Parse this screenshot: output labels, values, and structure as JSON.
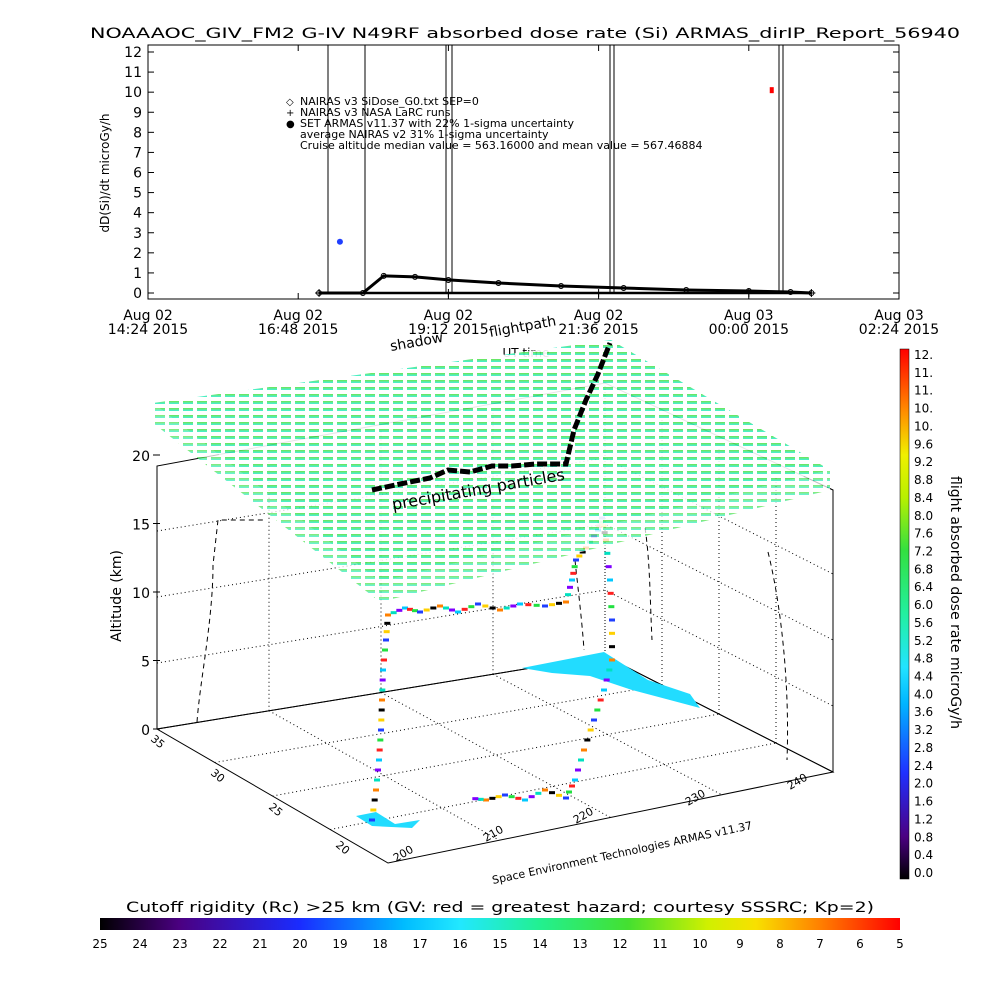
{
  "title": "NOAAAOC_GIV_FM2 G-IV   N49RF  absorbed dose rate (Si) ARMAS_dirIP_Report_56940",
  "top_chart": {
    "ylabel": "dD(Si)/dt microGy/h",
    "xlabel": "UT time",
    "y_ticks": [
      "0",
      "1",
      "2",
      "3",
      "4",
      "5",
      "6",
      "7",
      "8",
      "9",
      "10",
      "11",
      "12"
    ],
    "x_ticks": [
      {
        "date": "Aug 02",
        "time": "14:24 2015"
      },
      {
        "date": "Aug 02",
        "time": "16:48 2015"
      },
      {
        "date": "Aug 02",
        "time": "19:12 2015"
      },
      {
        "date": "Aug 02",
        "time": "21:36 2015"
      },
      {
        "date": "Aug 03",
        "time": "00:00 2015"
      },
      {
        "date": "Aug 03",
        "time": "02:24 2015"
      }
    ],
    "legend": [
      {
        "symbol": "◇",
        "text": "NAIRAS v3 SiDose_G0.txt SEP=0"
      },
      {
        "symbol": "+",
        "text": "NAIRAS v3 NASA LaRC runs"
      },
      {
        "symbol": "●",
        "text": "SET ARMAS v11.37 with 22% 1-sigma uncertainty"
      },
      {
        "symbol": "",
        "text": "average NAIRAS v2 31% 1-sigma uncertainty"
      },
      {
        "symbol": "",
        "text": "Cruise altitude median value = 563.16000 and mean value = 567.46884"
      }
    ]
  },
  "scene": {
    "label_shadow": "shadow",
    "label_flightpath": "flightpath",
    "label_precip": "precipitating particles",
    "z_label": "Altitude (km)",
    "z_ticks": [
      "0",
      "5",
      "10",
      "15",
      "20"
    ],
    "lat_ticks": [
      "20",
      "25",
      "30",
      "35"
    ],
    "lon_ticks": [
      "200",
      "210",
      "220",
      "230",
      "240"
    ],
    "credit": "Space Environment Technologies ARMAS v11.37"
  },
  "colorbar_right": {
    "label": "flight absorbed dose rate microGy/h",
    "ticks": [
      "12.",
      "11.",
      "11.",
      "10.",
      "10.",
      "9.6",
      "9.2",
      "8.8",
      "8.4",
      "8.0",
      "7.6",
      "7.2",
      "6.8",
      "6.4",
      "6.0",
      "5.6",
      "5.2",
      "4.8",
      "4.4",
      "4.0",
      "3.6",
      "3.2",
      "2.8",
      "2.4",
      "2.0",
      "1.6",
      "1.2",
      "0.8",
      "0.4",
      "0.0"
    ]
  },
  "colorbar_bottom": {
    "label": "Cutoff rigidity (Rc) >25 km (GV: red = greatest hazard; courtesy SSSRC; Kp=2)",
    "ticks": [
      "25",
      "24",
      "23",
      "22",
      "21",
      "20",
      "19",
      "18",
      "17",
      "16",
      "15",
      "14",
      "13",
      "12",
      "11",
      "10",
      "9",
      "8",
      "7",
      "6",
      "5"
    ]
  },
  "colors": {
    "armas_point": "#1f3fff",
    "red_point": "#ff0000",
    "cyan_patch": "#22dcff",
    "sheet_top": "#5fe23a",
    "sheet_bottom": "#2ef0d0"
  },
  "chart_data": [
    {
      "type": "line",
      "title": "NOAAAOC_GIV_FM2 G-IV   N49RF  absorbed dose rate (Si) ARMAS_dirIP_Report_56940",
      "xlabel": "UT time",
      "ylabel": "dD(Si)/dt microGy/h",
      "ylim": [
        0,
        12
      ],
      "xlim": [
        "2015-08-02 14:24",
        "2015-08-03 02:24"
      ],
      "grid": false,
      "legend_position": "top-left",
      "series": [
        {
          "name": "NAIRAS v3 SiDose_G0.txt SEP=0",
          "x": [
            "2015-08-02 17:08",
            "2015-08-02 17:50",
            "2015-08-02 18:10",
            "2015-08-02 18:40",
            "2015-08-02 19:12",
            "2015-08-02 20:00",
            "2015-08-02 21:00",
            "2015-08-02 22:00",
            "2015-08-02 23:00",
            "2015-08-03 00:00",
            "2015-08-03 00:40",
            "2015-08-03 01:00"
          ],
          "y": [
            0.0,
            0.0,
            0.85,
            0.8,
            0.65,
            0.5,
            0.35,
            0.25,
            0.15,
            0.1,
            0.05,
            0.0
          ]
        },
        {
          "name": "NAIRAS v3 NASA LaRC runs",
          "x": [
            "2015-08-02 17:08",
            "2015-08-02 19:12",
            "2015-08-02 21:36",
            "2015-08-03 00:00",
            "2015-08-03 01:00"
          ],
          "y": [
            0.0,
            0.0,
            0.0,
            0.0,
            0.0
          ]
        },
        {
          "name": "SET ARMAS v11.37 with 22% 1-sigma uncertainty",
          "x": [
            "2015-08-02 17:28"
          ],
          "y": [
            2.55
          ]
        },
        {
          "name": "",
          "x": [
            "2015-08-03 00:22"
          ],
          "y": [
            10.1
          ]
        }
      ]
    }
  ]
}
